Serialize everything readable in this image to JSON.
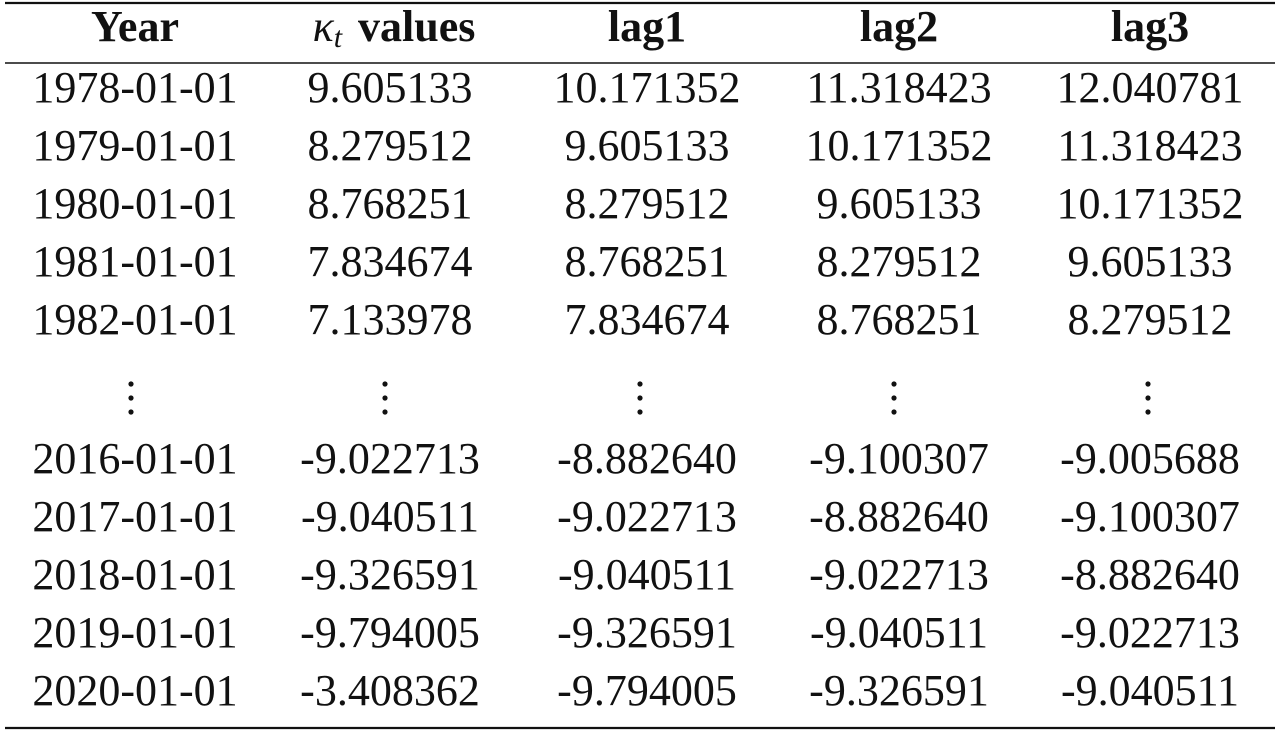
{
  "table": {
    "header": [
      "Year",
      {
        "symbol": "κ",
        "subscript": "t",
        "text": "values"
      },
      "lag1",
      "lag2",
      "lag3"
    ],
    "rows": [
      [
        "1978-01-01",
        "9.605133",
        "10.171352",
        "11.318423",
        "12.040781"
      ],
      [
        "1979-01-01",
        "8.279512",
        "9.605133",
        "10.171352",
        "11.318423"
      ],
      [
        "1980-01-01",
        "8.768251",
        "8.279512",
        "9.605133",
        "10.171352"
      ],
      [
        "1981-01-01",
        "7.834674",
        "8.768251",
        "8.279512",
        "9.605133"
      ],
      [
        "1982-01-01",
        "7.133978",
        "7.834674",
        "8.768251",
        "8.279512"
      ],
      [
        "2016-01-01",
        "-9.022713",
        "-8.882640",
        "-9.100307",
        "-9.005688"
      ],
      [
        "2017-01-01",
        "-9.040511",
        "-9.022713",
        "-8.882640",
        "-9.100307"
      ],
      [
        "2018-01-01",
        "-9.326591",
        "-9.040511",
        "-9.022713",
        "-8.882640"
      ],
      [
        "2019-01-01",
        "-9.794005",
        "-9.326591",
        "-9.040511",
        "-9.022713"
      ],
      [
        "2020-01-01",
        "-3.408362",
        "-9.794005",
        "-9.326591",
        "-9.040511"
      ]
    ]
  }
}
